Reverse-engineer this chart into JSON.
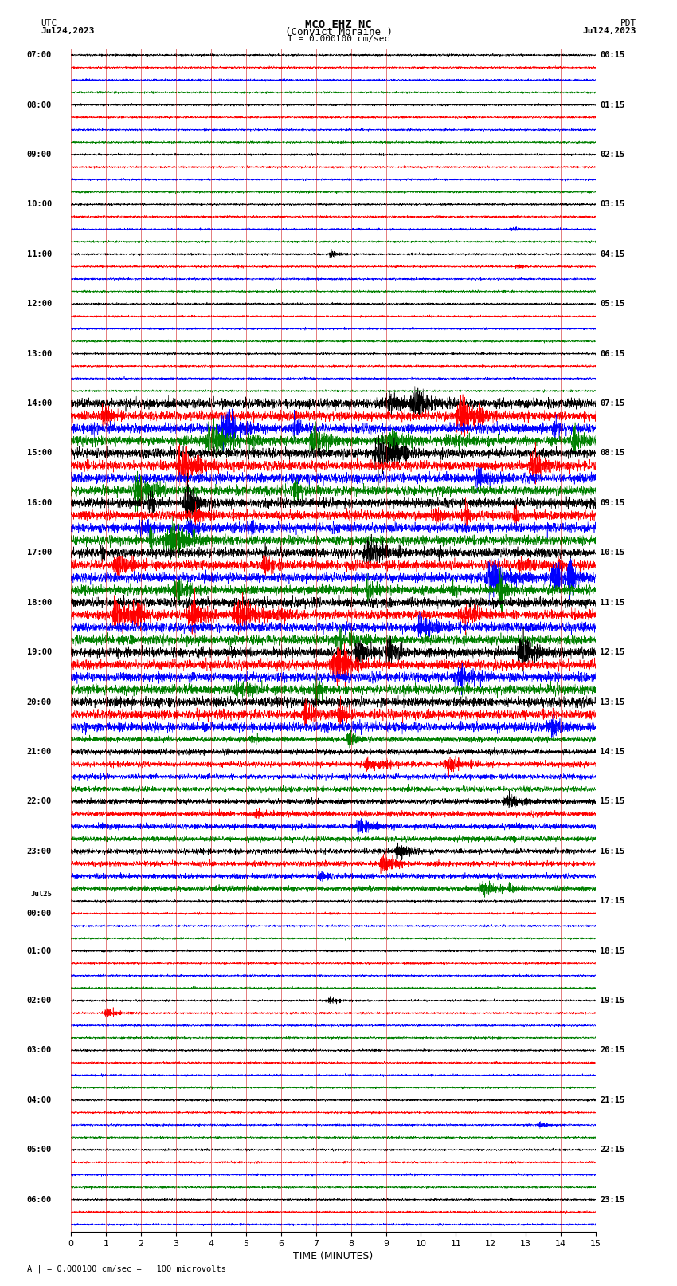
{
  "title_line1": "MCO EHZ NC",
  "title_line2": "(Convict Moraine )",
  "scale_text": "I = 0.000100 cm/sec",
  "footer_text": "A | = 0.000100 cm/sec =   100 microvolts",
  "xlabel": "TIME (MINUTES)",
  "utc_label": "UTC",
  "utc_date": "Jul24,2023",
  "pdt_label": "PDT",
  "pdt_date": "Jul24,2023",
  "left_times": [
    "07:00",
    "",
    "",
    "",
    "08:00",
    "",
    "",
    "",
    "09:00",
    "",
    "",
    "",
    "10:00",
    "",
    "",
    "",
    "11:00",
    "",
    "",
    "",
    "12:00",
    "",
    "",
    "",
    "13:00",
    "",
    "",
    "",
    "14:00",
    "",
    "",
    "",
    "15:00",
    "",
    "",
    "",
    "16:00",
    "",
    "",
    "",
    "17:00",
    "",
    "",
    "",
    "18:00",
    "",
    "",
    "",
    "19:00",
    "",
    "",
    "",
    "20:00",
    "",
    "",
    "",
    "21:00",
    "",
    "",
    "",
    "22:00",
    "",
    "",
    "",
    "23:00",
    "",
    "",
    "",
    "Jul25",
    "00:00",
    "",
    "",
    "01:00",
    "",
    "",
    "",
    "02:00",
    "",
    "",
    "",
    "03:00",
    "",
    "",
    "",
    "04:00",
    "",
    "",
    "",
    "05:00",
    "",
    "",
    "",
    "06:00",
    "",
    ""
  ],
  "right_times": [
    "00:15",
    "",
    "",
    "",
    "01:15",
    "",
    "",
    "",
    "02:15",
    "",
    "",
    "",
    "03:15",
    "",
    "",
    "",
    "04:15",
    "",
    "",
    "",
    "05:15",
    "",
    "",
    "",
    "06:15",
    "",
    "",
    "",
    "07:15",
    "",
    "",
    "",
    "08:15",
    "",
    "",
    "",
    "09:15",
    "",
    "",
    "",
    "10:15",
    "",
    "",
    "",
    "11:15",
    "",
    "",
    "",
    "12:15",
    "",
    "",
    "",
    "13:15",
    "",
    "",
    "",
    "14:15",
    "",
    "",
    "",
    "15:15",
    "",
    "",
    "",
    "16:15",
    "",
    "",
    "",
    "17:15",
    "",
    "",
    "",
    "18:15",
    "",
    "",
    "",
    "19:15",
    "",
    "",
    "",
    "20:15",
    "",
    "",
    "",
    "21:15",
    "",
    "",
    "",
    "22:15",
    "",
    "",
    "",
    "23:15",
    "",
    ""
  ],
  "colors": [
    "black",
    "red",
    "blue",
    "green"
  ],
  "n_rows": 95,
  "n_minutes": 15,
  "bg_color": "#ffffff",
  "trace_bg": "#ffffff",
  "grid_color": "#cc0000",
  "grid_alpha": 0.6
}
